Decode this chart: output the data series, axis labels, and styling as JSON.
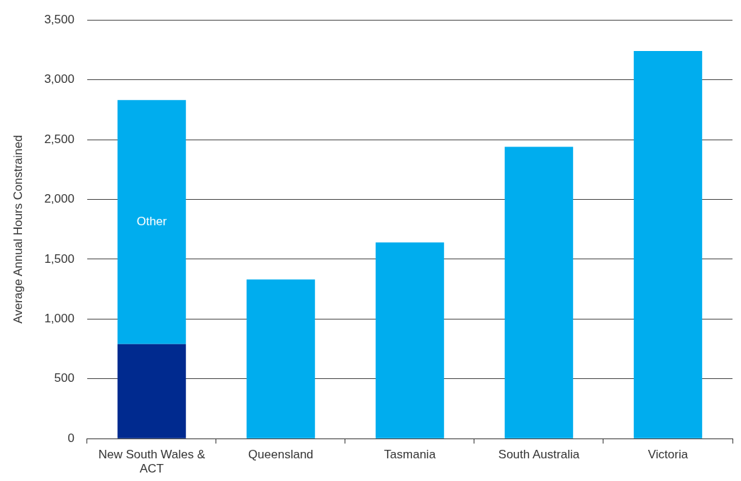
{
  "chart_data": {
    "type": "bar",
    "stacked": true,
    "ylabel": "Average Annual Hours Constrained",
    "categories": [
      "New South Wales & ACT",
      "Queensland",
      "Tasmania",
      "South Australia",
      "Victoria"
    ],
    "series": [
      {
        "color": "#002a8f",
        "values": [
          790,
          null,
          null,
          null,
          null
        ]
      },
      {
        "name": "Other",
        "color": "#00adee",
        "values": [
          2040,
          null,
          null,
          null,
          null
        ]
      },
      {
        "color": "#00adee",
        "values": [
          null,
          1330,
          1640,
          2440,
          3240
        ]
      }
    ],
    "ylim": [
      0,
      3500
    ],
    "yticks": [
      {
        "value": 0,
        "label": "0"
      },
      {
        "value": 500,
        "label": "500"
      },
      {
        "value": 1000,
        "label": "1,000"
      },
      {
        "value": 1500,
        "label": "1,500"
      },
      {
        "value": 2000,
        "label": "2,000"
      },
      {
        "value": 2500,
        "label": "2,500"
      },
      {
        "value": 3000,
        "label": "3,000"
      },
      {
        "value": 3500,
        "label": "3,500"
      }
    ],
    "grid": "y",
    "legend": false
  }
}
